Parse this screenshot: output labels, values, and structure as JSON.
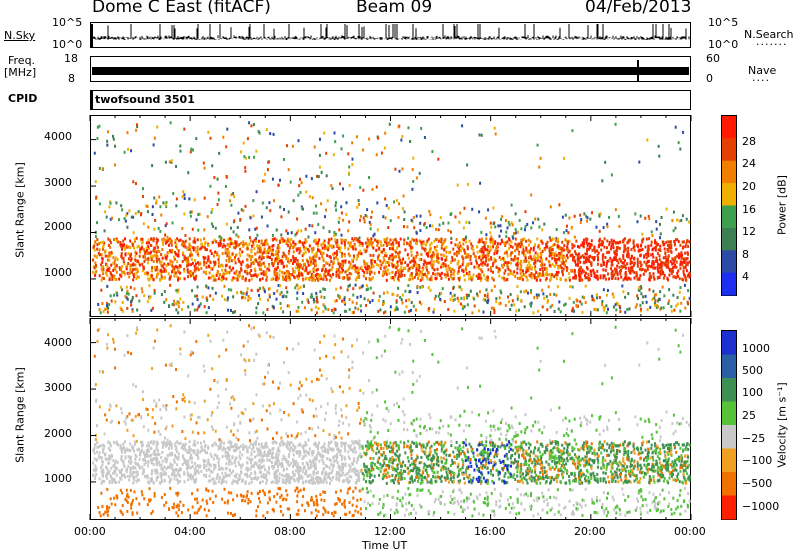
{
  "header": {
    "station": "Dome C East (fitACF)",
    "beam": "Beam 09",
    "date": "04/Feb/2013"
  },
  "top_panels": {
    "nsky_label": "N.Sky",
    "nsky_ticks": [
      "10^5",
      "10^0"
    ],
    "nsearch_label": "N.Search",
    "nsearch_ticks": [
      "10^5",
      "10^0"
    ],
    "freq_label": "Freq.",
    "freq_unit": "[MHz]",
    "freq_ticks": [
      "18",
      "8"
    ],
    "nave_label": "Nave",
    "nave_ticks": [
      "60",
      "0"
    ],
    "cpid_label": "CPID",
    "cpid_value": "twofsound 3501"
  },
  "chart_data": [
    {
      "type": "heatmap",
      "title": "",
      "ylabel": "Slant Range [km]",
      "xlabel": "",
      "xlim": [
        "00:00",
        "24:00"
      ],
      "ylim": [
        180,
        4530
      ],
      "yticks": [
        "1000",
        "2000",
        "3000",
        "4000"
      ],
      "colorbar_label": "Power [dB]",
      "colorbar_ticks": [
        "4",
        "8",
        "12",
        "16",
        "20",
        "24",
        "28"
      ],
      "colorbar_range": [
        0,
        32
      ],
      "colors": [
        "#1c2ff0",
        "#2d4aa6",
        "#3c7f52",
        "#3ea04e",
        "#f0b000",
        "#f07f00",
        "#e64000",
        "#ff1a00"
      ]
    },
    {
      "type": "heatmap",
      "title": "",
      "ylabel": "Slant Range [km]",
      "xlabel": "Time UT",
      "xlim": [
        "00:00",
        "24:00"
      ],
      "ylim": [
        180,
        4530
      ],
      "yticks": [
        "1000",
        "2000",
        "3000",
        "4000"
      ],
      "xticks": [
        "00:00",
        "04:00",
        "08:00",
        "12:00",
        "16:00",
        "20:00",
        "00:00"
      ],
      "colorbar_label": "Velocity [m s⁻¹]",
      "colorbar_ticks": [
        "1000",
        "500",
        "100",
        "25",
        "−25",
        "−100",
        "−500",
        "−1000"
      ],
      "colors": [
        "#1c2fcf",
        "#2a5fa6",
        "#3e8f52",
        "#55c23a",
        "#c8c8c8",
        "#f0a020",
        "#f07000",
        "#ff2000"
      ]
    }
  ]
}
